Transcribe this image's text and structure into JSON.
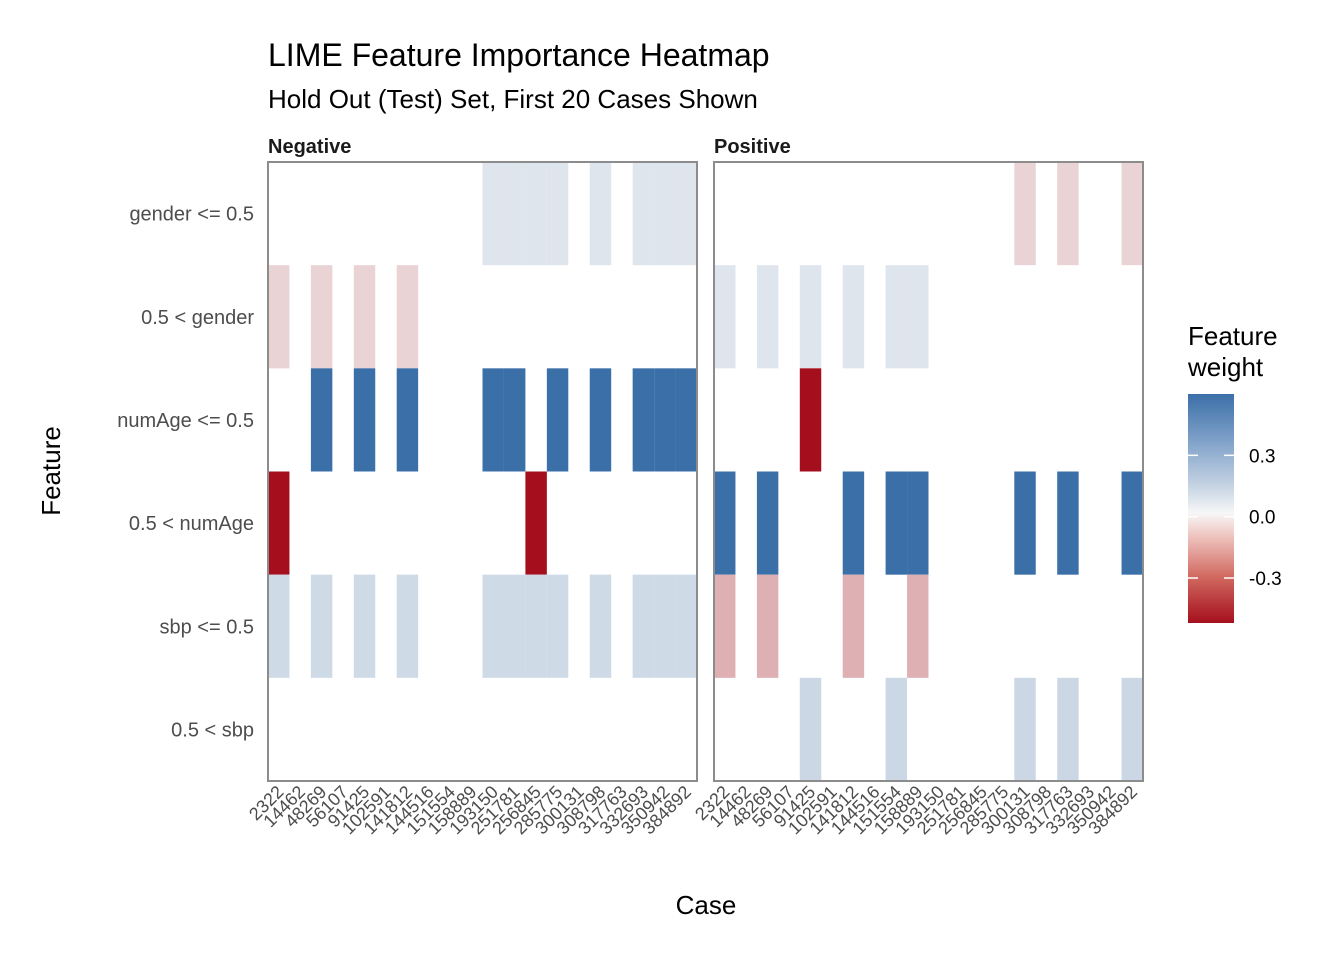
{
  "chart_data": {
    "type": "heatmap",
    "title": "LIME Feature Importance Heatmap",
    "subtitle": "Hold Out (Test) Set, First 20 Cases Shown",
    "xlabel": "Case",
    "ylabel": "Feature",
    "features": [
      "gender <= 0.5",
      "0.5 < gender",
      "numAge <= 0.5",
      "0.5 < numAge",
      "sbp <= 0.5",
      "0.5 < sbp"
    ],
    "cases": [
      "2322",
      "14462",
      "48269",
      "56107",
      "91425",
      "102591",
      "141812",
      "144516",
      "151554",
      "158889",
      "193150",
      "251781",
      "256845",
      "285775",
      "300131",
      "308798",
      "317763",
      "332693",
      "350942",
      "384892"
    ],
    "legend": {
      "title_line1": "Feature",
      "title_line2": "weight",
      "ticks": [
        "0.3",
        "0.0",
        "-0.3"
      ],
      "tick_values": [
        0.3,
        0.0,
        -0.3
      ],
      "range": [
        -0.52,
        0.6
      ]
    },
    "color_scale": {
      "negative": "#a50f1d",
      "zero": "#f7f7f7",
      "positive": "#3b6fa8"
    },
    "panels": [
      {
        "label": "Negative",
        "cells": [
          {
            "feature": "gender <= 0.5",
            "cases": [
              "193150",
              "251781",
              "256845",
              "285775",
              "308798",
              "332693",
              "350942",
              "384892"
            ],
            "weight": 0.08
          },
          {
            "feature": "0.5 < gender",
            "cases": [
              "2322",
              "48269",
              "91425",
              "141812"
            ],
            "weight": -0.08
          },
          {
            "feature": "numAge <= 0.5",
            "cases": [
              "48269",
              "91425",
              "141812",
              "193150",
              "251781",
              "285775",
              "308798",
              "332693",
              "350942",
              "384892"
            ],
            "weight": 0.6
          },
          {
            "feature": "0.5 < numAge",
            "cases": [
              "2322",
              "256845"
            ],
            "weight": -0.52
          },
          {
            "feature": "sbp <= 0.5",
            "cases": [
              "2322",
              "48269",
              "91425",
              "141812",
              "193150",
              "251781",
              "256845",
              "285775",
              "308798",
              "332693",
              "350942",
              "384892"
            ],
            "weight": 0.13
          }
        ]
      },
      {
        "label": "Positive",
        "cells": [
          {
            "feature": "gender <= 0.5",
            "cases": [
              "300131",
              "317763",
              "384892"
            ],
            "weight": -0.08
          },
          {
            "feature": "0.5 < gender",
            "cases": [
              "2322",
              "48269",
              "91425",
              "141812",
              "151554",
              "158889"
            ],
            "weight": 0.08
          },
          {
            "feature": "numAge <= 0.5",
            "cases": [
              "91425"
            ],
            "weight": -0.52
          },
          {
            "feature": "0.5 < numAge",
            "cases": [
              "2322",
              "48269",
              "141812",
              "151554",
              "158889",
              "300131",
              "317763",
              "384892"
            ],
            "weight": 0.6
          },
          {
            "feature": "sbp <= 0.5",
            "cases": [
              "2322",
              "48269",
              "141812",
              "158889"
            ],
            "weight": -0.16
          },
          {
            "feature": "0.5 < sbp",
            "cases": [
              "91425",
              "151554",
              "300131",
              "317763",
              "384892"
            ],
            "weight": 0.14
          }
        ]
      }
    ]
  }
}
